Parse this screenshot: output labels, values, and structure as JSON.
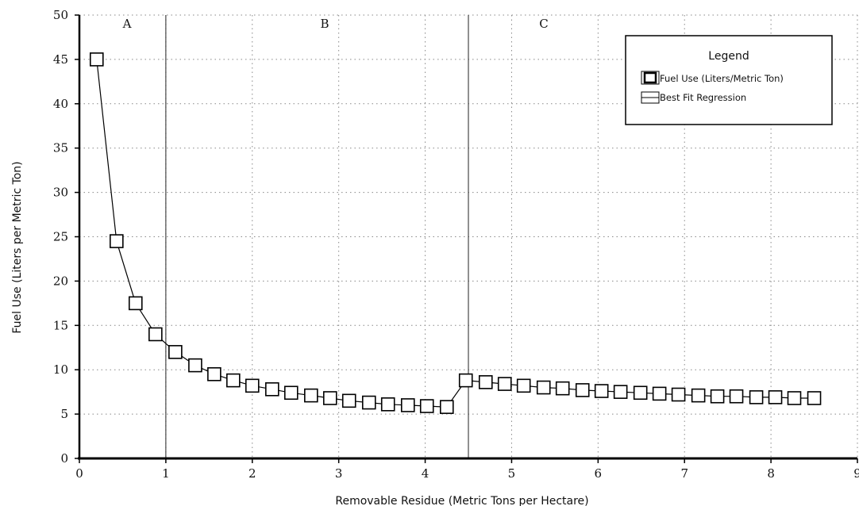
{
  "chart_data": {
    "type": "line",
    "xlabel": "Removable Residue (Metric Tons per Hectare)",
    "ylabel": "Fuel Use (Liters per Metric Ton)",
    "xlim": [
      0,
      9
    ],
    "ylim": [
      0,
      50
    ],
    "x_ticks": [
      "0",
      "1",
      "2",
      "3",
      "4",
      "5",
      "6",
      "7",
      "8",
      "9"
    ],
    "y_ticks": [
      "0",
      "5",
      "10",
      "15",
      "20",
      "25",
      "30",
      "35",
      "40",
      "45",
      "50"
    ],
    "grid": true,
    "legend_position": "top-right",
    "legend": {
      "title": "Legend",
      "entries": [
        {
          "label": "Fuel Use (Liters/Metric Ton)",
          "marker": "square"
        },
        {
          "label": "Best Fit Regression",
          "marker": "line"
        }
      ]
    },
    "regions": [
      {
        "label": "A",
        "x_start": 0,
        "x_end": 1
      },
      {
        "label": "B",
        "x_start": 1,
        "x_end": 4.5
      },
      {
        "label": "C",
        "x_start": 4.5,
        "x_end": 9
      }
    ],
    "boundaries": [
      1,
      4.5
    ],
    "series": [
      {
        "marker": "square",
        "x": [
          0.2,
          0.43,
          0.65,
          0.88,
          1.11,
          1.34,
          1.56,
          1.78,
          2.0,
          2.23,
          2.45,
          2.68,
          2.9,
          3.12,
          3.35,
          3.57,
          3.8,
          4.02,
          4.25,
          4.47,
          4.7,
          4.92,
          5.14,
          5.37,
          5.59,
          5.82,
          6.04,
          6.26,
          6.49,
          6.71,
          6.93,
          7.16,
          7.38,
          7.6,
          7.83,
          8.05,
          8.27,
          8.5
        ],
        "y": [
          45,
          24.5,
          17.5,
          14,
          12,
          10.5,
          9.5,
          8.8,
          8.2,
          7.8,
          7.4,
          7.1,
          6.8,
          6.5,
          6.3,
          6.1,
          6.0,
          5.9,
          5.8,
          8.8,
          8.6,
          8.4,
          8.2,
          8.0,
          7.9,
          7.7,
          7.6,
          7.5,
          7.4,
          7.3,
          7.2,
          7.1,
          7.0,
          7.0,
          6.9,
          6.9,
          6.8,
          6.8
        ]
      }
    ]
  }
}
